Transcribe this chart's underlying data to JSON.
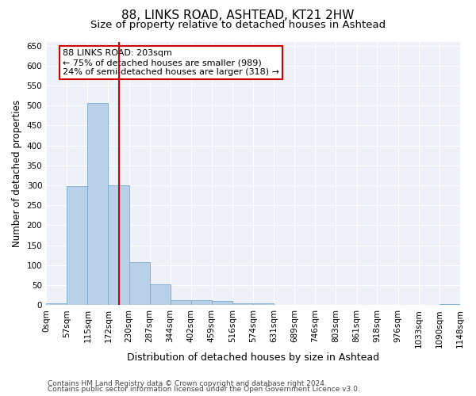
{
  "title": "88, LINKS ROAD, ASHTEAD, KT21 2HW",
  "subtitle": "Size of property relative to detached houses in Ashtead",
  "xlabel": "Distribution of detached houses by size in Ashtead",
  "ylabel": "Number of detached properties",
  "bin_edges": [
    0,
    57,
    115,
    172,
    230,
    287,
    344,
    402,
    459,
    516,
    574,
    631,
    689,
    746,
    803,
    861,
    918,
    976,
    1033,
    1090,
    1148
  ],
  "bar_heights": [
    5,
    299,
    507,
    301,
    108,
    53,
    13,
    13,
    10,
    5,
    5,
    0,
    0,
    0,
    0,
    1,
    0,
    0,
    0,
    3
  ],
  "bar_color": "#b8d0e8",
  "bar_edge_color": "#7aaad0",
  "vline_x": 203,
  "vline_color": "#cc0000",
  "annotation_line1": "88 LINKS ROAD: 203sqm",
  "annotation_line2": "← 75% of detached houses are smaller (989)",
  "annotation_line3": "24% of semi-detached houses are larger (318) →",
  "annotation_fontsize": 8,
  "title_fontsize": 11,
  "subtitle_fontsize": 9.5,
  "xlabel_fontsize": 9,
  "ylabel_fontsize": 8.5,
  "tick_fontsize": 7.5,
  "ylim": [
    0,
    660
  ],
  "yticks": [
    0,
    50,
    100,
    150,
    200,
    250,
    300,
    350,
    400,
    450,
    500,
    550,
    600,
    650
  ],
  "background_color": "#eef2f8",
  "grid_color": "#ffffff",
  "footer_line1": "Contains HM Land Registry data © Crown copyright and database right 2024.",
  "footer_line2": "Contains public sector information licensed under the Open Government Licence v3.0.",
  "footer_fontsize": 6.5
}
